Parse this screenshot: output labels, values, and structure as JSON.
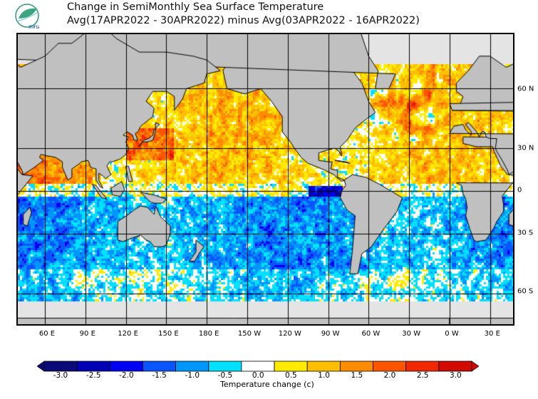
{
  "header": {
    "logo_text": "สสน",
    "title_line1": "Change in SemiMonthly Sea Surface Temperature",
    "title_line2": "Avg(17APR2022 - 30APR2022) minus Avg(03APR2022 - 16APR2022)"
  },
  "map": {
    "lat_labels": [
      "60 N",
      "30 N",
      "0",
      "30 S",
      "60 S"
    ],
    "lon_labels": [
      "60 E",
      "90 E",
      "120 E",
      "150 E",
      "180 E",
      "150 W",
      "120 W",
      "90 W",
      "60 W",
      "30 W",
      "0 W",
      "30 E"
    ],
    "land_color": "#c0c0c0",
    "nodata_color": "#e4e4e4"
  },
  "colorbar": {
    "label": "Temperature change  (c)",
    "ticks": [
      "-3.0",
      "-2.5",
      "-2.0",
      "-1.5",
      "-1.0",
      "-0.5",
      "0.0",
      "0.5",
      "1.0",
      "1.5",
      "2.0",
      "2.5",
      "3.0"
    ],
    "colors": [
      "#0a0a78",
      "#0000b4",
      "#0000f5",
      "#0a55ff",
      "#0096ff",
      "#00e1ff",
      "#ffffff",
      "#ffeb00",
      "#ffbe00",
      "#ff8c00",
      "#ff5500",
      "#f02800",
      "#d20a00"
    ]
  }
}
